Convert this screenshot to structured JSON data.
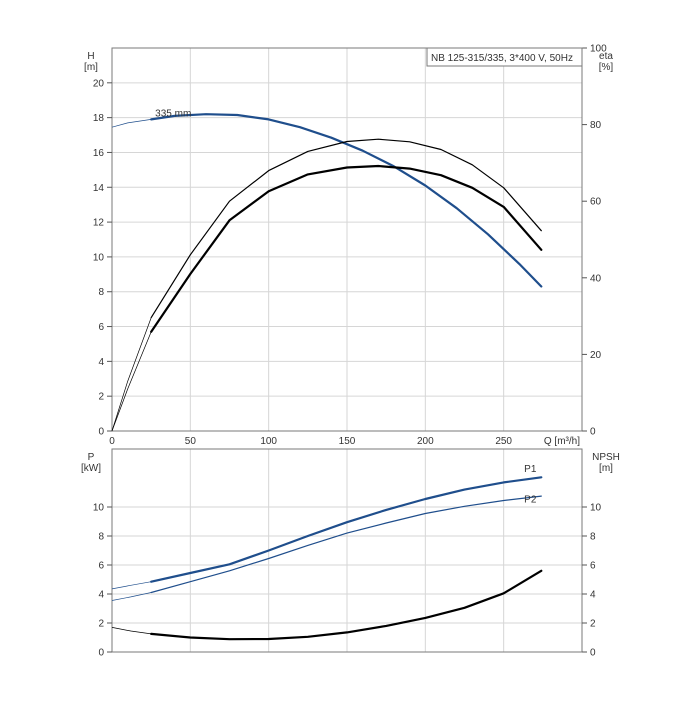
{
  "chart_data": [
    {
      "type": "line",
      "title": "NB 125-315/335, 3*400 V, 50Hz",
      "left_axis": {
        "label": "H",
        "unit": "[m]",
        "ylim": [
          0,
          22
        ],
        "ticks": [
          0,
          2,
          4,
          6,
          8,
          10,
          12,
          14,
          16,
          18,
          20
        ]
      },
      "right_axis": {
        "label": "eta",
        "unit": "[%]",
        "ylim": [
          0,
          100
        ],
        "ticks": [
          0,
          20,
          40,
          60,
          80,
          100
        ]
      },
      "x_axis": {
        "label": "Q [m³/h]",
        "xlim": [
          0,
          300
        ],
        "ticks": [
          0,
          50,
          100,
          150,
          200,
          250
        ]
      },
      "grid": true,
      "annotations": [
        {
          "text": "335 mm",
          "x": 25,
          "y": 18.0
        }
      ],
      "series": [
        {
          "name": "335 mm",
          "axis": "left",
          "color": "#1f4e8c",
          "width": 2.2,
          "points": [
            [
              25,
              17.9
            ],
            [
              40,
              18.1
            ],
            [
              60,
              18.2
            ],
            [
              80,
              18.15
            ],
            [
              100,
              17.9
            ],
            [
              120,
              17.45
            ],
            [
              140,
              16.85
            ],
            [
              160,
              16.1
            ],
            [
              180,
              15.2
            ],
            [
              200,
              14.1
            ],
            [
              220,
              12.8
            ],
            [
              240,
              11.3
            ],
            [
              260,
              9.6
            ],
            [
              274,
              8.3
            ]
          ],
          "extension": [
            [
              0,
              17.45
            ],
            [
              10,
              17.7
            ],
            [
              25,
              17.9
            ]
          ]
        },
        {
          "axis": "right",
          "color": "#000000",
          "width": 1.2,
          "points": [
            [
              25,
              29.6
            ],
            [
              50,
              46
            ],
            [
              75,
              60
            ],
            [
              100,
              68
            ],
            [
              125,
              73
            ],
            [
              150,
              75.6
            ],
            [
              170,
              76.2
            ],
            [
              190,
              75.5
            ],
            [
              210,
              73.5
            ],
            [
              230,
              69.5
            ],
            [
              250,
              63.5
            ],
            [
              274,
              52.3
            ]
          ],
          "extension": [
            [
              0,
              0
            ],
            [
              10,
              13
            ],
            [
              25,
              29.6
            ]
          ]
        },
        {
          "axis": "right",
          "color": "#000000",
          "width": 2.2,
          "points": [
            [
              25,
              25.9
            ],
            [
              50,
              41
            ],
            [
              75,
              55
            ],
            [
              100,
              62.6
            ],
            [
              125,
              67
            ],
            [
              150,
              68.8
            ],
            [
              170,
              69.2
            ],
            [
              190,
              68.5
            ],
            [
              210,
              66.8
            ],
            [
              230,
              63.5
            ],
            [
              250,
              58.5
            ],
            [
              274,
              47.3
            ]
          ],
          "extension": [
            [
              0,
              0
            ],
            [
              10,
              11
            ],
            [
              25,
              25.9
            ]
          ]
        }
      ]
    },
    {
      "type": "line",
      "left_axis": {
        "label": "P",
        "unit": "[kW]",
        "ylim": [
          0,
          14
        ],
        "ticks": [
          0,
          2,
          4,
          6,
          8,
          10
        ]
      },
      "right_axis": {
        "label": "NPSH",
        "unit": "[m]",
        "ylim": [
          0,
          14
        ],
        "ticks": [
          0,
          2,
          4,
          6,
          8,
          10
        ]
      },
      "x_axis": {
        "xlim": [
          0,
          300
        ]
      },
      "grid": true,
      "series": [
        {
          "name": "P1",
          "axis": "left",
          "color": "#1f4e8c",
          "width": 2.2,
          "points": [
            [
              25,
              4.85
            ],
            [
              50,
              5.45
            ],
            [
              75,
              6.05
            ],
            [
              100,
              7.0
            ],
            [
              125,
              8.0
            ],
            [
              150,
              8.95
            ],
            [
              175,
              9.8
            ],
            [
              200,
              10.55
            ],
            [
              225,
              11.2
            ],
            [
              250,
              11.7
            ],
            [
              274,
              12.05
            ]
          ],
          "extension": [
            [
              0,
              4.35
            ],
            [
              12,
              4.6
            ],
            [
              25,
              4.85
            ]
          ],
          "label_at": [
            267,
            12.4
          ]
        },
        {
          "name": "P2",
          "axis": "left",
          "color": "#1f4e8c",
          "width": 1.2,
          "points": [
            [
              25,
              4.1
            ],
            [
              50,
              4.85
            ],
            [
              75,
              5.6
            ],
            [
              100,
              6.45
            ],
            [
              125,
              7.35
            ],
            [
              150,
              8.2
            ],
            [
              175,
              8.9
            ],
            [
              200,
              9.55
            ],
            [
              225,
              10.05
            ],
            [
              250,
              10.45
            ],
            [
              274,
              10.75
            ]
          ],
          "extension": [
            [
              0,
              3.55
            ],
            [
              12,
              3.8
            ],
            [
              25,
              4.1
            ]
          ],
          "label_at": [
            267,
            10.3
          ]
        },
        {
          "axis": "right",
          "color": "#000000",
          "width": 2.2,
          "points": [
            [
              25,
              1.25
            ],
            [
              50,
              1.0
            ],
            [
              75,
              0.88
            ],
            [
              100,
              0.9
            ],
            [
              125,
              1.05
            ],
            [
              150,
              1.35
            ],
            [
              175,
              1.8
            ],
            [
              200,
              2.35
            ],
            [
              225,
              3.05
            ],
            [
              250,
              4.05
            ],
            [
              274,
              5.6
            ]
          ],
          "extension": [
            [
              0,
              1.7
            ],
            [
              12,
              1.45
            ],
            [
              25,
              1.25
            ]
          ]
        }
      ]
    }
  ]
}
